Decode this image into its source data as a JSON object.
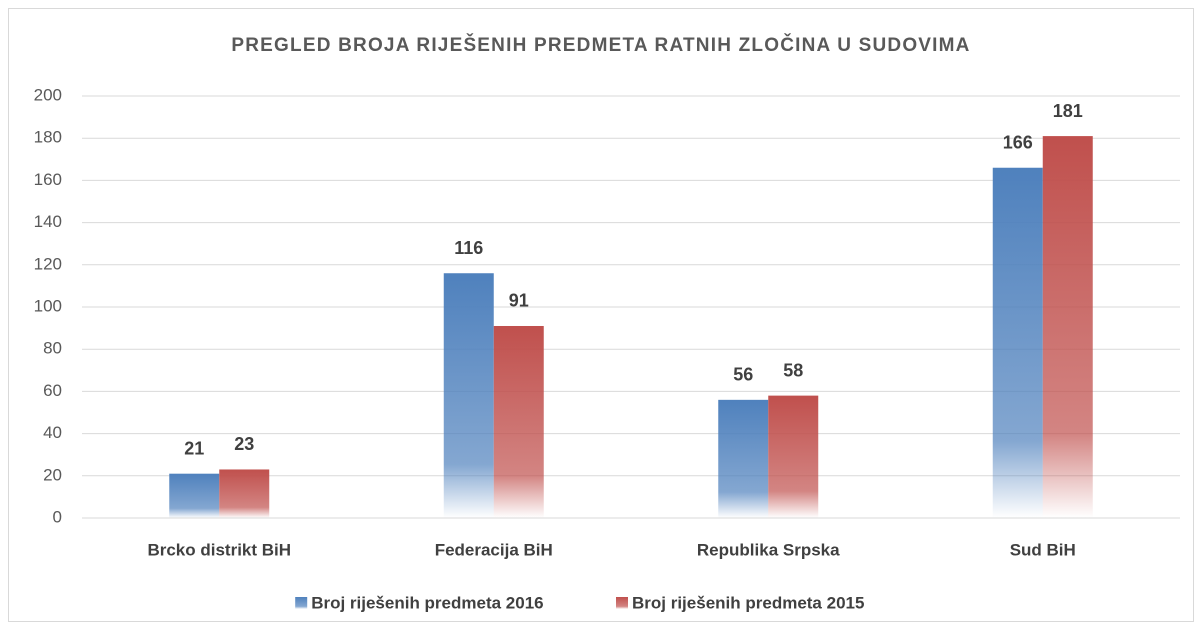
{
  "chart_data": {
    "type": "bar",
    "title": "PREGLED BROJA RIJEŠENIH PREDMETA RATNIH ZLOČINA U SUDOVIMA",
    "categories": [
      "Brcko distrikt BiH",
      "Federacija BiH",
      "Republika Srpska",
      "Sud BiH"
    ],
    "series": [
      {
        "name": "Broj riješenih predmeta 2016",
        "color": "#4f81bd",
        "values": [
          21,
          116,
          56,
          166
        ]
      },
      {
        "name": "Broj riješenih predmeta 2015",
        "color": "#c0504d",
        "values": [
          23,
          91,
          58,
          181
        ]
      }
    ],
    "ylim": [
      0,
      200
    ],
    "yticks": [
      0,
      20,
      40,
      60,
      80,
      100,
      120,
      140,
      160,
      180,
      200
    ],
    "grid": true,
    "legend": "bottom"
  }
}
